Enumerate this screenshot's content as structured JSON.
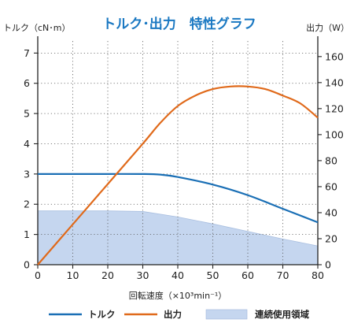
{
  "chart_data": {
    "type": "line",
    "title": "トルク･出力　特性グラフ",
    "xlabel": "回転速度（×10³min⁻¹）",
    "ylabel_left": "トルク（cN･m）",
    "ylabel_right": "出力（W）",
    "xlim": [
      0,
      80
    ],
    "ylim_left": [
      0,
      7.4
    ],
    "ylim_right": [
      0,
      172
    ],
    "x_ticks": [
      "0",
      "10",
      "20",
      "30",
      "40",
      "50",
      "60",
      "70",
      "80"
    ],
    "y_left_ticks": [
      "0",
      "1",
      "2",
      "3",
      "4",
      "5",
      "6",
      "7"
    ],
    "y_right_ticks": [
      "0",
      "20",
      "40",
      "60",
      "80",
      "100",
      "120",
      "140",
      "160"
    ],
    "grid": true,
    "legend_position": "bottom",
    "series": [
      {
        "name": "トルク",
        "axis": "left",
        "color": "#1a6fb5",
        "x": [
          0,
          10,
          20,
          30,
          35,
          40,
          50,
          60,
          70,
          80
        ],
        "y": [
          3.0,
          3.0,
          3.0,
          3.0,
          2.98,
          2.9,
          2.65,
          2.3,
          1.85,
          1.4
        ]
      },
      {
        "name": "出力",
        "axis": "right",
        "color": "#e06a1b",
        "x": [
          0,
          10,
          20,
          30,
          35,
          40,
          45,
          50,
          55,
          60,
          65,
          70,
          75,
          80
        ],
        "y": [
          0,
          31,
          62,
          93,
          109,
          122,
          130,
          135,
          137,
          137,
          135,
          130,
          124,
          113
        ]
      }
    ],
    "areas": [
      {
        "name": "連続使用領域",
        "axis": "left",
        "color": "#c5d6ef",
        "x": [
          0,
          10,
          20,
          30,
          40,
          50,
          60,
          70,
          80
        ],
        "y": [
          1.78,
          1.78,
          1.78,
          1.76,
          1.58,
          1.35,
          1.1,
          0.85,
          0.62
        ]
      }
    ]
  }
}
